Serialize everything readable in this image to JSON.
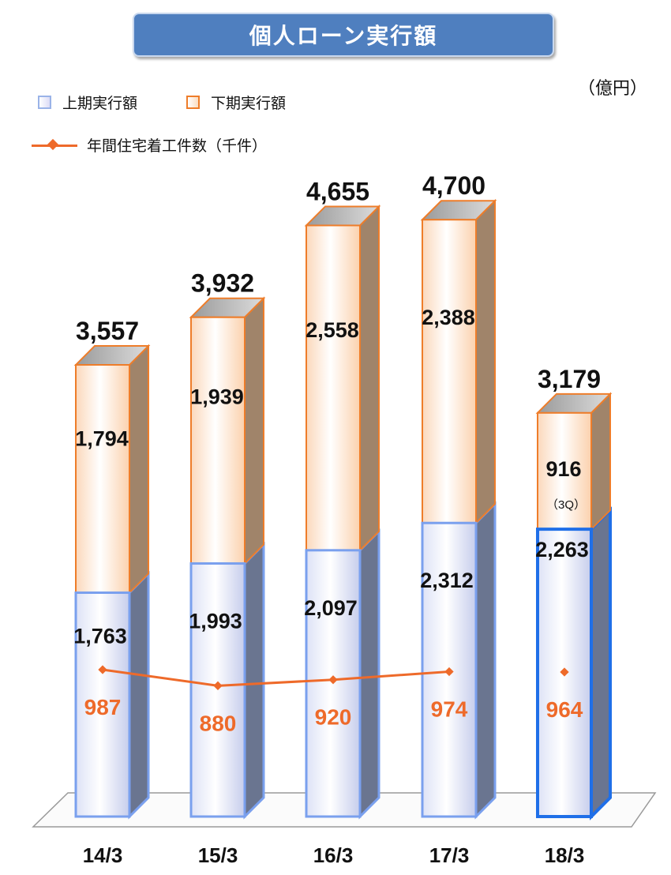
{
  "title": "個人ローン実行額",
  "unit_label": "（億円）",
  "legend": {
    "first_half": "上期実行額",
    "second_half": "下期実行額",
    "count_line": "年間住宅着工件数（千件）"
  },
  "colors": {
    "title_bg": "#4f7fbf",
    "first_half_border": "#7aa0ee",
    "first_half_border_highlight": "#1f6fe8",
    "second_half_border": "#ee7d2a",
    "line": "#ee6a2a",
    "value_text": "#111111",
    "count_text": "#ee6a2a"
  },
  "chart_data": {
    "type": "bar",
    "stacked": true,
    "title": "個人ローン実行額",
    "unit": "（億円）",
    "categories": [
      "14/3",
      "15/3",
      "16/3",
      "17/3",
      "18/3"
    ],
    "series": [
      {
        "name": "上期実行額",
        "values": [
          1763,
          1993,
          2097,
          2312,
          2263
        ]
      },
      {
        "name": "下期実行額",
        "values": [
          1794,
          1939,
          2558,
          2388,
          916
        ],
        "notes": [
          "",
          "",
          "",
          "",
          "（3Q）"
        ]
      }
    ],
    "totals": [
      3557,
      3932,
      4655,
      4700,
      3179
    ],
    "display": {
      "first_half": [
        "1,763",
        "1,993",
        "2,097",
        "2,312",
        "2,263"
      ],
      "second_half": [
        "1,794",
        "1,939",
        "2,558",
        "2,388",
        "916"
      ],
      "totals": [
        "3,557",
        "3,932",
        "4,655",
        "4,700",
        "3,179"
      ],
      "counts": [
        "987",
        "880",
        "920",
        "974",
        "964"
      ]
    },
    "line_series": {
      "name": "年間住宅着工件数（千件）",
      "values": [
        987,
        880,
        920,
        974,
        964
      ],
      "connected": [
        true,
        true,
        true,
        true,
        false
      ]
    },
    "highlight_category": "18/3",
    "ylim": [
      0,
      5000
    ],
    "grid": false,
    "legend_position": "top-left"
  }
}
